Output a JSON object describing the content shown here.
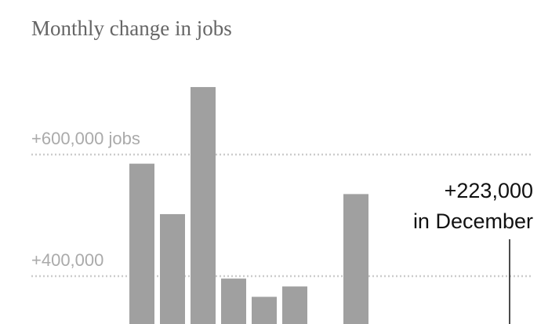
{
  "chart_data": {
    "type": "bar",
    "title": "Monthly change in jobs",
    "categories": [
      null,
      null,
      null,
      null,
      null,
      null,
      null,
      null,
      null,
      null,
      null,
      null,
      null
    ],
    "values": [
      585000,
      502000,
      711000,
      396000,
      366000,
      383000,
      null,
      535000,
      null,
      null,
      null,
      null,
      223000
    ],
    "value_labels": [
      null,
      null,
      null,
      null,
      null,
      null,
      null,
      null,
      null,
      null,
      null,
      null,
      "+223,000"
    ],
    "annotation": "in December",
    "color": "#a0a0a0",
    "ylim": [
      0,
      750000
    ],
    "yticks": [
      {
        "value": 600000,
        "label": "+600,000 jobs"
      },
      {
        "value": 400000,
        "label": "+400,000"
      }
    ],
    "grid": true
  }
}
